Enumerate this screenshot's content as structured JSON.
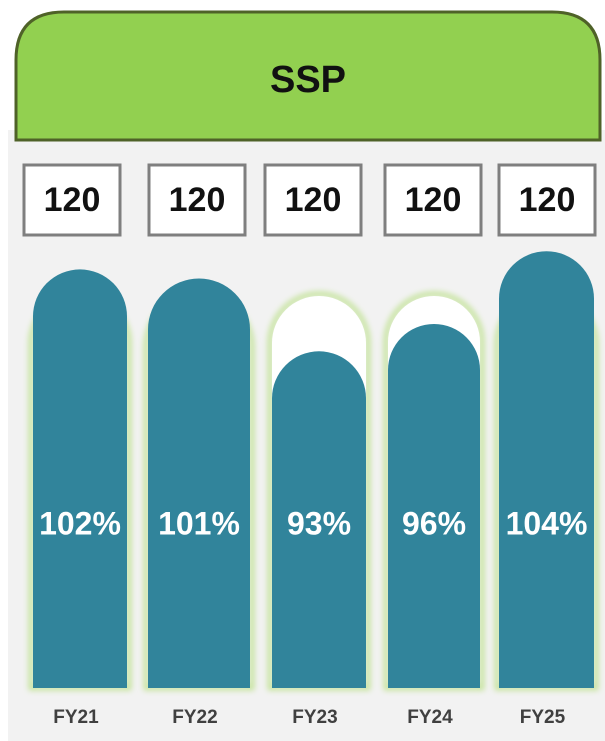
{
  "chart_data": {
    "type": "bar",
    "title": "SSP",
    "categories": [
      "FY21",
      "FY22",
      "FY23",
      "FY24",
      "FY25"
    ],
    "values": [
      102,
      101,
      93,
      96,
      104
    ],
    "value_labels": [
      "102%",
      "101%",
      "93%",
      "96%",
      "104%"
    ],
    "box_values": [
      120,
      120,
      120,
      120,
      120
    ],
    "color": "#31849b",
    "ylim": [
      56,
      106
    ]
  }
}
